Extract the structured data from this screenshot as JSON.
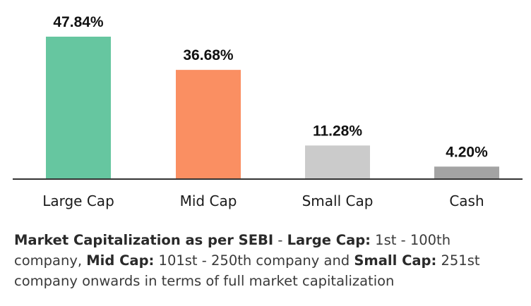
{
  "chart_data": {
    "type": "bar",
    "categories": [
      "Large Cap",
      "Mid Cap",
      "Small Cap",
      "Cash"
    ],
    "values": [
      47.84,
      36.68,
      11.28,
      4.2
    ],
    "value_labels": [
      "47.84%",
      "36.68%",
      "11.28%",
      "4.20%"
    ],
    "colors": [
      "#66c6a0",
      "#fa8f62",
      "#cbcbcb",
      "#a3a3a3"
    ],
    "axis_color": "#333333",
    "title": "",
    "xlabel": "",
    "ylabel": "",
    "ylim": [
      0,
      47.84
    ],
    "grid": false
  },
  "footnote": {
    "part1_bold": "Market Capitalization as per SEBI",
    "part2": " - ",
    "part3_bold": "Large Cap:",
    "part4": " 1st - 100th company, ",
    "part5_bold": "Mid Cap:",
    "part6": " 101st - 250th company and ",
    "part7_bold": "Small Cap:",
    "part8": " 251st company onwards in terms of full market capitalization"
  }
}
